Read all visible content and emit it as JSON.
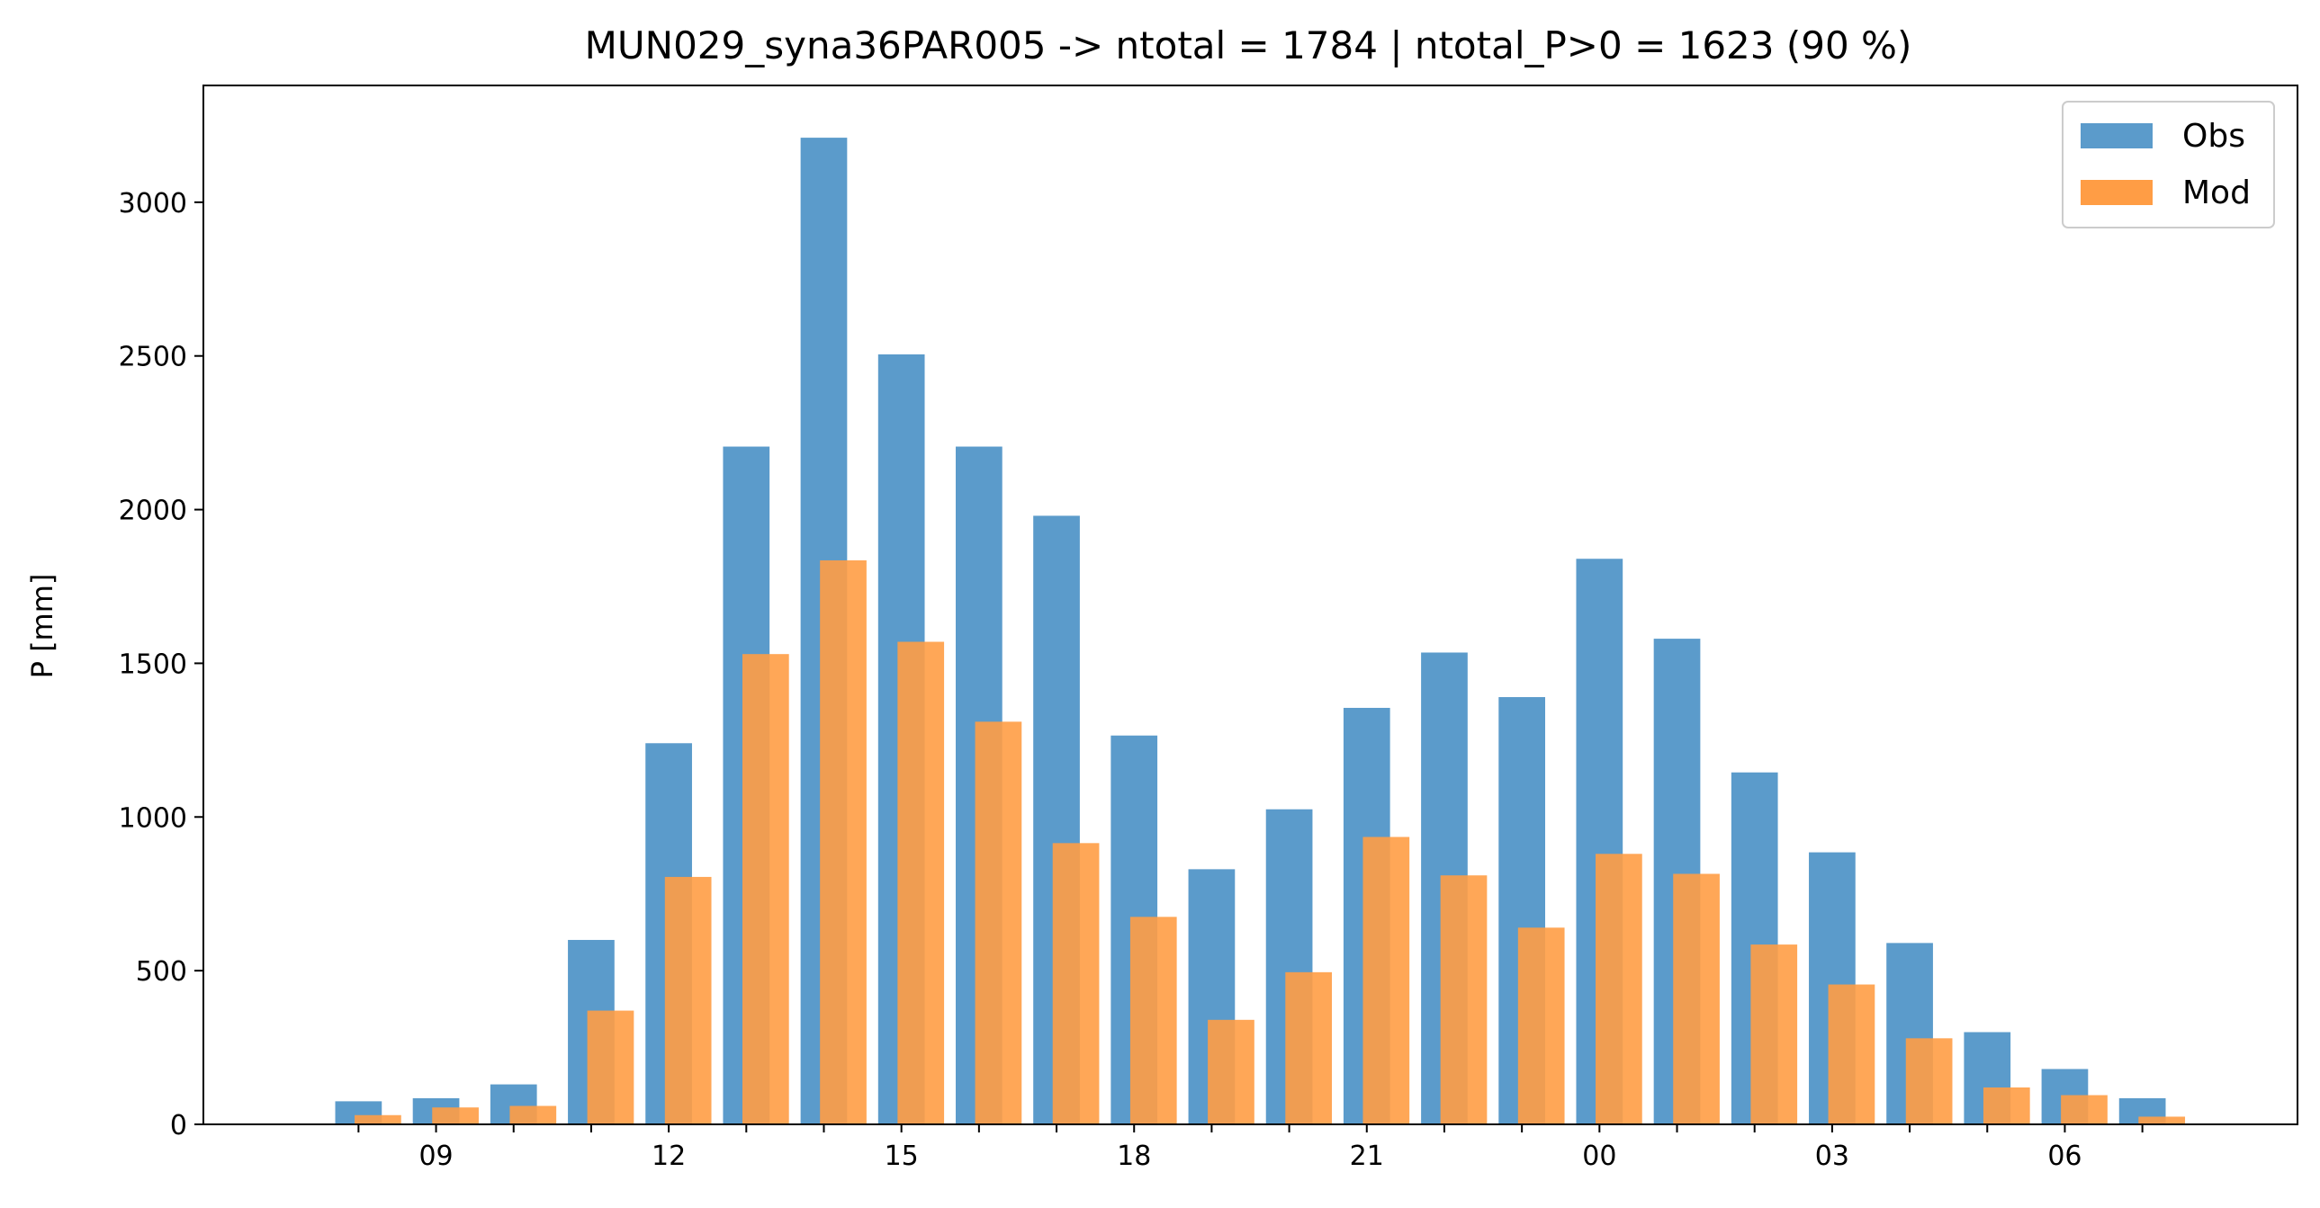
{
  "chart_data": {
    "type": "bar",
    "title": "MUN029_syna36PAR005 -> ntotal = 1784 | ntotal_P>0 = 1623 (90 %)",
    "xlabel": "",
    "ylabel": "P [mm]",
    "ylim": [
      0,
      3380
    ],
    "yticks": [
      0,
      500,
      1000,
      1500,
      2000,
      2500,
      3000
    ],
    "x": [
      8,
      9,
      10,
      11,
      12,
      13,
      14,
      15,
      16,
      17,
      18,
      19,
      20,
      21,
      22,
      23,
      0,
      1,
      2,
      3,
      4,
      5,
      6,
      7
    ],
    "xticks": [
      "09",
      "12",
      "15",
      "18",
      "21",
      "00",
      "03",
      "06"
    ],
    "legend_position": "top-right",
    "grid": false,
    "colors": {
      "Obs": "#5b9bcb",
      "Mod": "#ff9d45"
    },
    "series": [
      {
        "name": "Obs",
        "values": [
          75,
          85,
          130,
          600,
          1240,
          2205,
          3210,
          2505,
          2205,
          1980,
          1265,
          830,
          1025,
          1355,
          1535,
          1390,
          1840,
          1580,
          1145,
          885,
          590,
          300,
          180,
          85
        ]
      },
      {
        "name": "Mod",
        "values": [
          30,
          55,
          60,
          370,
          805,
          1530,
          1835,
          1570,
          1310,
          915,
          675,
          340,
          495,
          935,
          810,
          640,
          880,
          815,
          585,
          455,
          280,
          120,
          95,
          25
        ]
      }
    ]
  }
}
